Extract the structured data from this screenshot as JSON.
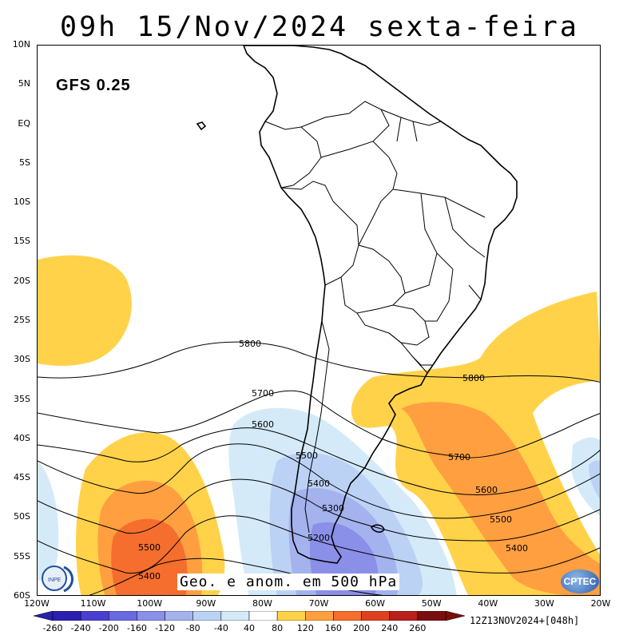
{
  "title": "09h 15/Nov/2024 sexta-feira",
  "model_label": "GFS 0.25",
  "footer_caption": "Geo. e anom. em 500 hPa",
  "run_info": "12Z13NOV2024+[048h]",
  "logos": {
    "left": "INPE",
    "right": "CPTEC"
  },
  "lat_labels": [
    "10N",
    "5N",
    "EQ",
    "5S",
    "10S",
    "15S",
    "20S",
    "25S",
    "30S",
    "35S",
    "40S",
    "45S",
    "50S",
    "55S",
    "60S"
  ],
  "lon_labels": [
    "120W",
    "110W",
    "100W",
    "90W",
    "80W",
    "70W",
    "60W",
    "50W",
    "40W",
    "30W",
    "20W"
  ],
  "contour_labels": [
    "5800",
    "5700",
    "5600",
    "5500",
    "5400",
    "5300",
    "5200",
    "5800",
    "5700",
    "5600",
    "5500",
    "5400",
    "5500",
    "5400"
  ],
  "colorbar": {
    "labels": [
      "-260",
      "-240",
      "-200",
      "-160",
      "-120",
      "-80",
      "-40",
      "40",
      "80",
      "120",
      "160",
      "200",
      "240",
      "260"
    ],
    "colors": [
      "#2b1fb0",
      "#4a3fd0",
      "#6a6ae0",
      "#8a8fe8",
      "#a4b2ee",
      "#bcd2f4",
      "#d4eaf8",
      "#ffffff",
      "#ffd24a",
      "#ff9f40",
      "#f56e2e",
      "#e0401e",
      "#b8201a",
      "#7a0e0e"
    ]
  },
  "chart_data": {
    "type": "map",
    "variable": "Geo. e anom. em 500 hPa",
    "contour_levels": [
      5200,
      5300,
      5400,
      5500,
      5600,
      5700,
      5800
    ],
    "anomaly_scale": [
      -260,
      -240,
      -200,
      -160,
      -120,
      -80,
      -40,
      40,
      80,
      120,
      160,
      200,
      240,
      260
    ],
    "domain": {
      "lon": [
        -120,
        -20
      ],
      "lat": [
        -60,
        10
      ]
    }
  }
}
